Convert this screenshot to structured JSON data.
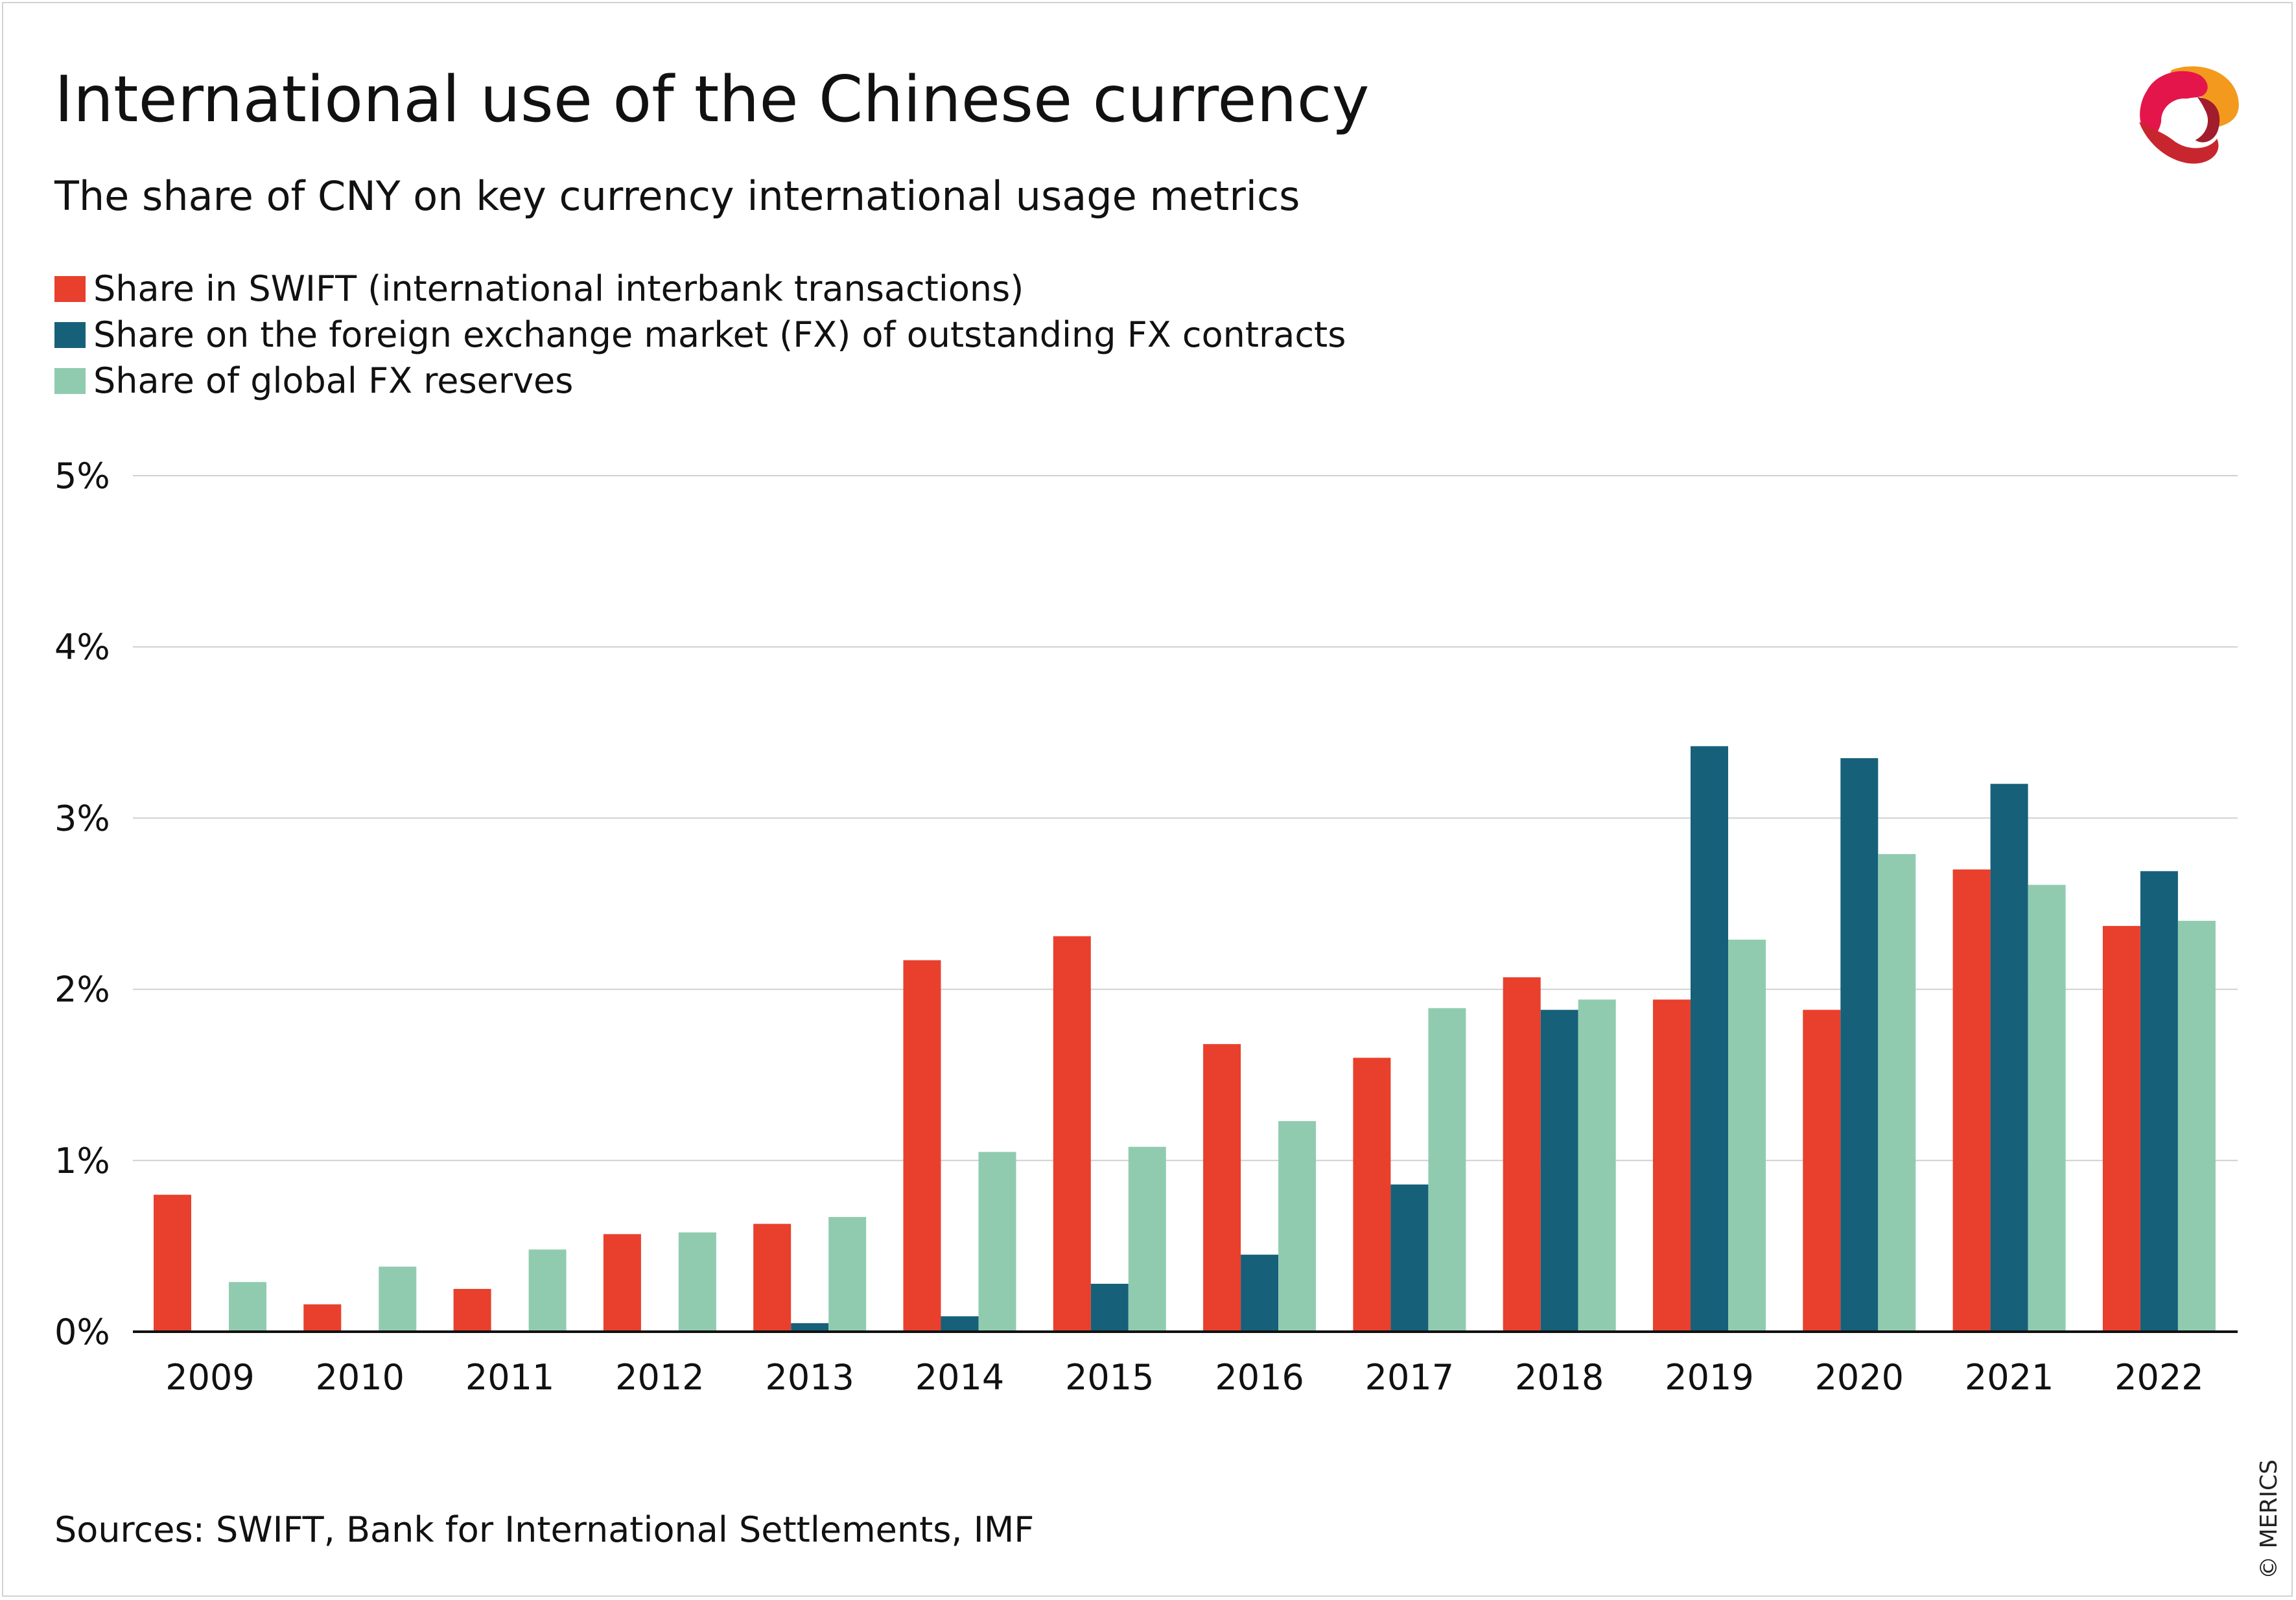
{
  "header": {
    "title": "International use of the Chinese currency",
    "subtitle": "The share of CNY on key currency international usage metrics"
  },
  "colors": {
    "swift": "#e8402c",
    "fx_market": "#17607a",
    "reserves": "#90cbb0",
    "gridline": "#d0d0d0",
    "axis": "#111111"
  },
  "chart_data": {
    "type": "bar",
    "title": "International use of the Chinese currency",
    "subtitle": "The share of CNY on key currency international usage metrics",
    "xlabel": "",
    "ylabel": "",
    "ylim": [
      0,
      5
    ],
    "grid": true,
    "legend_position": "top-left",
    "y_ticks": [
      {
        "value": 0,
        "label": "0%"
      },
      {
        "value": 1,
        "label": "1%"
      },
      {
        "value": 2,
        "label": "2%"
      },
      {
        "value": 3,
        "label": "3%"
      },
      {
        "value": 4,
        "label": "4%"
      },
      {
        "value": 5,
        "label": "5%"
      }
    ],
    "categories": [
      "2009",
      "2010",
      "2011",
      "2012",
      "2013",
      "2014",
      "2015",
      "2016",
      "2017",
      "2018",
      "2019",
      "2020",
      "2021",
      "2022"
    ],
    "series": [
      {
        "name": "Share in SWIFT (international interbank transactions)",
        "color_key": "swift",
        "values": [
          0.8,
          0.16,
          0.25,
          0.57,
          0.63,
          2.17,
          2.31,
          1.68,
          1.6,
          2.07,
          1.94,
          1.88,
          2.7,
          2.37
        ]
      },
      {
        "name": "Share on the foreign exchange market (FX) of outstanding FX contracts",
        "color_key": "fx_market",
        "values": [
          null,
          null,
          null,
          null,
          0.05,
          0.09,
          0.28,
          0.45,
          0.86,
          1.88,
          3.42,
          3.35,
          3.2,
          2.69
        ]
      },
      {
        "name": "Share of global FX reserves",
        "color_key": "reserves",
        "values": [
          0.29,
          0.38,
          0.48,
          0.58,
          0.67,
          1.05,
          1.08,
          1.23,
          1.89,
          1.94,
          2.29,
          2.79,
          2.61,
          2.4
        ]
      }
    ]
  },
  "footer": {
    "source": "Sources: SWIFT, Bank for International Settlements, IMF",
    "copyright": "© MERICS"
  },
  "logo": {
    "icon": "merics-logo-icon"
  }
}
